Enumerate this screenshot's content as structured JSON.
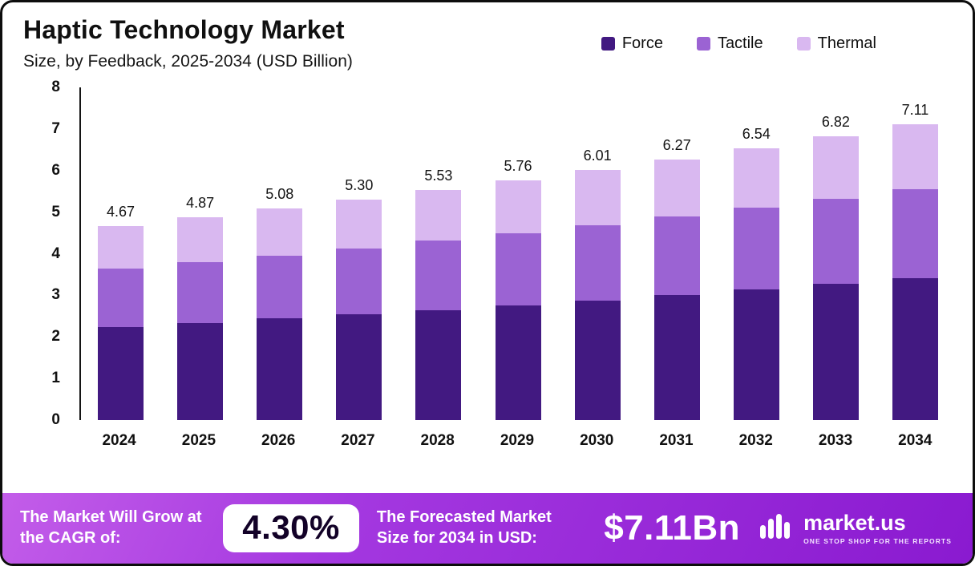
{
  "title": "Haptic Technology Market",
  "subtitle": "Size, by Feedback, 2025-2034 (USD Billion)",
  "legend": [
    {
      "label": "Force",
      "color": "#421981"
    },
    {
      "label": "Tactile",
      "color": "#9b63d3"
    },
    {
      "label": "Thermal",
      "color": "#d9b8f0"
    }
  ],
  "chart_data": {
    "type": "bar",
    "stacked": true,
    "title": "Haptic Technology Market Size, by Feedback, 2025-2034 (USD Billion)",
    "xlabel": "",
    "ylabel": "USD Billion",
    "ylim": [
      0,
      8
    ],
    "yticks": [
      0,
      1,
      2,
      3,
      4,
      5,
      6,
      7,
      8
    ],
    "grid": false,
    "legend_position": "top-right",
    "categories": [
      "2024",
      "2025",
      "2026",
      "2027",
      "2028",
      "2029",
      "2030",
      "2031",
      "2032",
      "2033",
      "2034"
    ],
    "series": [
      {
        "name": "Force",
        "color": "#421981",
        "values": [
          2.24,
          2.34,
          2.44,
          2.54,
          2.65,
          2.76,
          2.88,
          3.01,
          3.14,
          3.27,
          3.41
        ]
      },
      {
        "name": "Tactile",
        "color": "#9b63d3",
        "values": [
          1.4,
          1.46,
          1.52,
          1.59,
          1.66,
          1.73,
          1.81,
          1.88,
          1.96,
          2.05,
          2.14
        ]
      },
      {
        "name": "Thermal",
        "color": "#d9b8f0",
        "values": [
          1.03,
          1.07,
          1.12,
          1.17,
          1.22,
          1.27,
          1.32,
          1.38,
          1.44,
          1.5,
          1.56
        ]
      }
    ],
    "totals": [
      "4.67",
      "4.87",
      "5.08",
      "5.30",
      "5.53",
      "5.76",
      "6.01",
      "6.27",
      "6.54",
      "6.82",
      "7.11"
    ]
  },
  "footer": {
    "cagr_label": "The Market Will Grow at the CAGR of:",
    "cagr_value": "4.30%",
    "forecast_label": "The Forecasted Market Size for 2034 in USD:",
    "forecast_value": "$7.11Bn",
    "brand": "market.us",
    "brand_tagline": "ONE STOP SHOP FOR THE REPORTS"
  }
}
